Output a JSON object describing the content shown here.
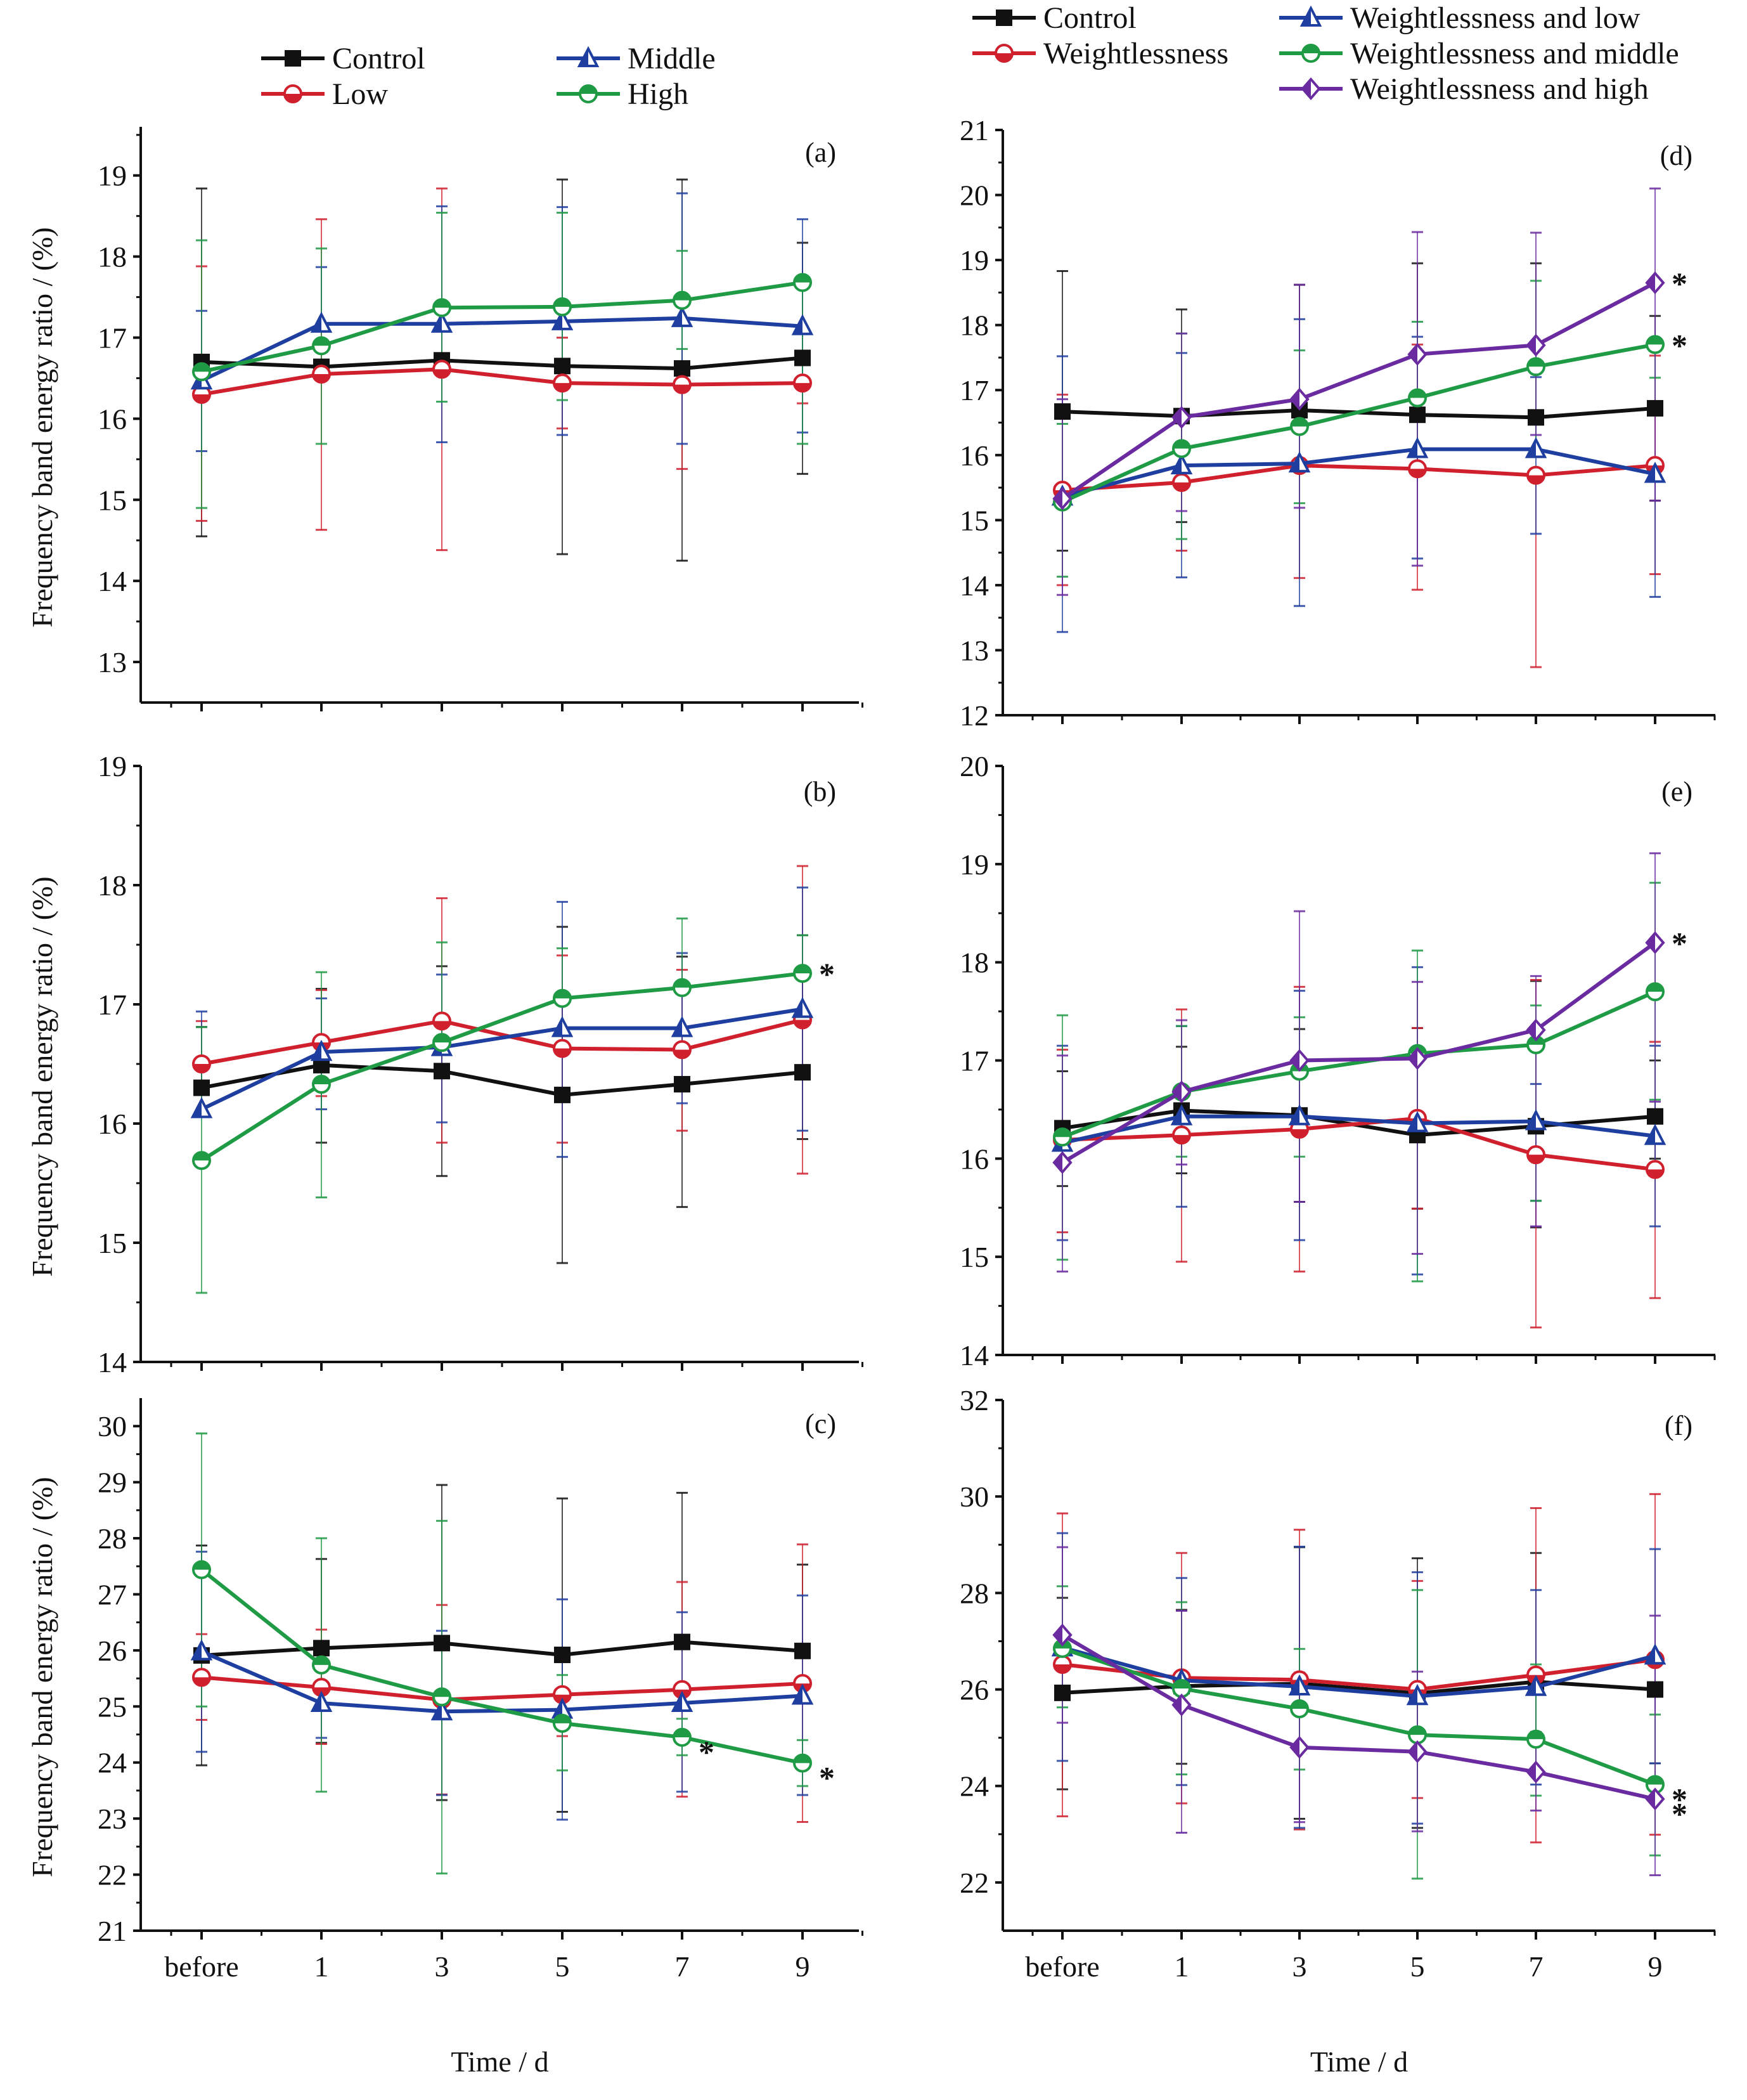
{
  "legends": {
    "left": [
      {
        "name": "Control",
        "color": "#111111",
        "marker": "square"
      },
      {
        "name": "Low",
        "color": "#d0202e",
        "marker": "circle"
      },
      {
        "name": "Middle",
        "color": "#1f3fa0",
        "marker": "triangle"
      },
      {
        "name": "High",
        "color": "#1f9a45",
        "marker": "circle-half"
      }
    ],
    "right": [
      {
        "name": "Control",
        "color": "#111111",
        "marker": "square"
      },
      {
        "name": "Weightlessness",
        "color": "#d0202e",
        "marker": "circle"
      },
      {
        "name": "Weightlessness and low",
        "color": "#1f3fa0",
        "marker": "triangle"
      },
      {
        "name": "Weightlessness and middle",
        "color": "#1f9a45",
        "marker": "circle-half"
      },
      {
        "name": "Weightlessness and high",
        "color": "#6a2aa0",
        "marker": "diamond"
      }
    ]
  },
  "chart_data": [
    {
      "type": "line",
      "panel": "(a)",
      "xlabel": "",
      "ylabel": "Frequency band energy ratio / (%)",
      "categories": [
        "before",
        "1",
        "3",
        "5",
        "7",
        "9"
      ],
      "ylim": [
        12.5,
        19.6
      ],
      "yticks": [
        13,
        14,
        15,
        16,
        17,
        18,
        19
      ],
      "series": [
        {
          "name": "Control",
          "values": [
            16.7,
            16.64,
            16.72,
            16.65,
            16.62,
            16.75
          ],
          "err_low": [
            14.55,
            null,
            null,
            14.33,
            14.25,
            15.32
          ],
          "err_high": [
            18.84,
            null,
            null,
            18.95,
            18.95,
            18.17
          ]
        },
        {
          "name": "Low",
          "values": [
            16.3,
            16.55,
            16.61,
            16.44,
            16.42,
            16.44
          ],
          "err_low": [
            14.74,
            14.63,
            14.38,
            15.88,
            15.38,
            16.19
          ],
          "err_high": [
            17.88,
            18.46,
            18.84,
            17.0,
            null,
            null
          ]
        },
        {
          "name": "Middle",
          "values": [
            16.47,
            17.17,
            17.17,
            17.2,
            17.24,
            17.14
          ],
          "err_low": [
            15.6,
            null,
            15.71,
            15.8,
            15.69,
            15.83
          ],
          "err_high": [
            17.33,
            17.87,
            18.62,
            18.61,
            18.78,
            18.46
          ]
        },
        {
          "name": "High",
          "values": [
            16.58,
            16.9,
            17.37,
            17.38,
            17.46,
            17.68
          ],
          "err_low": [
            14.9,
            15.69,
            16.21,
            16.23,
            16.86,
            15.69
          ],
          "err_high": [
            18.2,
            18.1,
            18.54,
            18.54,
            18.07,
            null
          ]
        }
      ],
      "significance": []
    },
    {
      "type": "line",
      "panel": "(b)",
      "xlabel": "",
      "ylabel": "Frequency band energy ratio / (%)",
      "categories": [
        "before",
        "1",
        "3",
        "5",
        "7",
        "9"
      ],
      "ylim": [
        14,
        19
      ],
      "yticks": [
        14,
        15,
        16,
        17,
        18,
        19
      ],
      "series": [
        {
          "name": "Control",
          "values": [
            16.3,
            16.49,
            16.44,
            16.24,
            16.33,
            16.43
          ],
          "err_low": [
            null,
            15.84,
            15.56,
            14.83,
            15.3,
            15.87
          ],
          "err_high": [
            16.81,
            17.13,
            17.32,
            17.65,
            17.4,
            17.58
          ]
        },
        {
          "name": "Low",
          "values": [
            16.5,
            16.68,
            16.86,
            16.63,
            16.62,
            16.87
          ],
          "err_low": [
            null,
            16.23,
            15.84,
            15.84,
            15.94,
            15.58
          ],
          "err_high": [
            16.86,
            17.12,
            17.89,
            17.41,
            17.29,
            18.16
          ]
        },
        {
          "name": "Middle",
          "values": [
            16.12,
            16.6,
            16.64,
            16.8,
            16.8,
            16.96
          ],
          "err_low": [
            null,
            16.12,
            16.01,
            15.72,
            16.17,
            15.94
          ],
          "err_high": [
            16.94,
            17.05,
            17.25,
            17.86,
            17.43,
            17.98
          ]
        },
        {
          "name": "High",
          "values": [
            15.69,
            16.33,
            16.68,
            17.05,
            17.14,
            17.26
          ],
          "err_low": [
            14.58,
            15.38,
            null,
            null,
            null,
            null
          ],
          "err_high": [
            16.81,
            17.27,
            17.52,
            17.47,
            17.72,
            17.58
          ]
        }
      ],
      "significance": [
        {
          "series": "High",
          "x": "9"
        }
      ]
    },
    {
      "type": "line",
      "panel": "(c)",
      "xlabel": "Time / d",
      "ylabel": "Frequency band energy ratio / (%)",
      "categories": [
        "before",
        "1",
        "3",
        "5",
        "7",
        "9"
      ],
      "ylim": [
        21,
        30.5
      ],
      "yticks": [
        21,
        22,
        23,
        24,
        25,
        26,
        27,
        28,
        29,
        30
      ],
      "series": [
        {
          "name": "Control",
          "values": [
            25.91,
            26.04,
            26.13,
            25.92,
            26.15,
            25.99
          ],
          "err_low": [
            23.95,
            24.35,
            23.33,
            23.12,
            null,
            null
          ],
          "err_high": [
            27.87,
            27.63,
            28.95,
            28.71,
            28.81,
            27.53
          ]
        },
        {
          "name": "Low",
          "values": [
            25.52,
            25.34,
            25.12,
            25.21,
            25.3,
            25.41
          ],
          "err_low": [
            24.76,
            24.33,
            23.43,
            24.47,
            23.39,
            22.94
          ],
          "err_high": [
            26.29,
            26.37,
            26.81,
            null,
            27.22,
            27.89
          ]
        },
        {
          "name": "Middle",
          "values": [
            25.98,
            25.06,
            24.91,
            24.94,
            25.06,
            25.19
          ],
          "err_low": [
            24.19,
            24.44,
            23.42,
            22.98,
            23.48,
            23.42
          ],
          "err_high": [
            27.76,
            null,
            26.35,
            26.91,
            26.68,
            26.98
          ]
        },
        {
          "name": "High",
          "values": [
            27.44,
            25.74,
            25.17,
            24.7,
            24.45,
            23.99
          ],
          "err_low": [
            25.0,
            23.48,
            22.02,
            23.86,
            24.13,
            23.58
          ],
          "err_high": [
            29.87,
            28.0,
            28.31,
            25.56,
            24.78,
            24.4
          ]
        }
      ],
      "significance": [
        {
          "series": "High",
          "x": "7"
        },
        {
          "series": "High",
          "x": "9"
        }
      ]
    },
    {
      "type": "line",
      "panel": "(d)",
      "xlabel": "",
      "ylabel": "",
      "categories": [
        "before",
        "1",
        "3",
        "5",
        "7",
        "9"
      ],
      "ylim": [
        12,
        21
      ],
      "yticks": [
        12,
        13,
        14,
        15,
        16,
        17,
        18,
        19,
        20,
        21
      ],
      "series": [
        {
          "name": "Control",
          "values": [
            16.67,
            16.6,
            16.69,
            16.62,
            16.58,
            16.72
          ],
          "err_low": [
            14.53,
            14.97,
            null,
            null,
            null,
            15.3
          ],
          "err_high": [
            18.83,
            18.24,
            18.62,
            18.95,
            18.95,
            18.14
          ]
        },
        {
          "name": "Weightlessness",
          "values": [
            15.46,
            15.58,
            15.84,
            15.79,
            15.69,
            15.84
          ],
          "err_low": [
            14.0,
            14.53,
            14.11,
            13.93,
            12.74,
            14.17
          ],
          "err_high": [
            16.93,
            null,
            null,
            17.7,
            null,
            17.53
          ]
        },
        {
          "name": "Weightlessness and low",
          "values": [
            15.36,
            15.84,
            15.87,
            16.09,
            16.09,
            15.71
          ],
          "err_low": [
            13.28,
            14.12,
            13.68,
            14.41,
            14.79,
            13.82
          ],
          "err_high": [
            17.52,
            17.57,
            18.09,
            17.82,
            17.2,
            null
          ]
        },
        {
          "name": "Weightlessness and middle",
          "values": [
            15.28,
            16.1,
            16.44,
            16.88,
            17.36,
            17.7
          ],
          "err_low": [
            14.13,
            14.71,
            15.26,
            15.72,
            16.0,
            16.67
          ],
          "err_high": [
            16.48,
            17.87,
            17.61,
            18.05,
            18.68,
            17.19
          ]
        },
        {
          "name": "Weightlessness and high",
          "values": [
            15.33,
            16.58,
            16.86,
            17.55,
            17.69,
            18.65
          ],
          "err_low": [
            13.85,
            15.14,
            15.19,
            14.3,
            16.31,
            15.3
          ],
          "err_high": [
            16.86,
            17.87,
            18.62,
            19.43,
            19.42,
            20.1
          ]
        }
      ],
      "significance": [
        {
          "series": "Weightlessness and high",
          "x": "9"
        },
        {
          "series": "Weightlessness and middle",
          "x": "9"
        }
      ]
    },
    {
      "type": "line",
      "panel": "(e)",
      "xlabel": "",
      "ylabel": "",
      "categories": [
        "before",
        "1",
        "3",
        "5",
        "7",
        "9"
      ],
      "ylim": [
        14,
        20
      ],
      "yticks": [
        14,
        15,
        16,
        17,
        18,
        19,
        20
      ],
      "series": [
        {
          "name": "Control",
          "values": [
            16.31,
            16.49,
            16.44,
            16.24,
            16.33,
            16.43
          ],
          "err_low": [
            15.72,
            15.85,
            15.56,
            15.49,
            15.3,
            16.0
          ],
          "err_high": [
            16.89,
            17.14,
            17.32,
            17.33,
            17.81,
            17.0
          ]
        },
        {
          "name": "Weightlessness",
          "values": [
            16.19,
            16.24,
            16.3,
            16.41,
            16.04,
            15.89
          ],
          "err_low": [
            15.25,
            14.95,
            14.85,
            15.49,
            14.28,
            14.58
          ],
          "err_high": [
            17.11,
            17.52,
            17.75,
            17.33,
            17.82,
            17.19
          ]
        },
        {
          "name": "Weightlessness and low",
          "values": [
            16.16,
            16.43,
            16.43,
            16.36,
            16.38,
            16.23
          ],
          "err_low": [
            15.17,
            15.51,
            15.17,
            14.82,
            15.57,
            15.31
          ],
          "err_high": [
            17.15,
            17.35,
            17.71,
            17.95,
            16.76,
            17.15
          ]
        },
        {
          "name": "Weightlessness and middle",
          "values": [
            16.22,
            16.68,
            16.89,
            17.07,
            17.16,
            17.7
          ],
          "err_low": [
            14.97,
            16.02,
            16.02,
            14.75,
            15.57,
            16.6
          ],
          "err_high": [
            17.46,
            17.35,
            17.44,
            18.12,
            17.56,
            18.81
          ]
        },
        {
          "name": "Weightlessness and high",
          "values": [
            15.96,
            16.68,
            17.0,
            17.02,
            17.31,
            18.2
          ],
          "err_low": [
            14.85,
            15.94,
            15.56,
            15.03,
            15.31,
            16.58
          ],
          "err_high": [
            17.05,
            17.41,
            18.52,
            17.8,
            17.86,
            19.11
          ]
        }
      ],
      "significance": [
        {
          "series": "Weightlessness and high",
          "x": "9"
        }
      ]
    },
    {
      "type": "line",
      "panel": "(f)",
      "xlabel": "Time / d",
      "ylabel": "",
      "categories": [
        "before",
        "1",
        "3",
        "5",
        "7",
        "9"
      ],
      "ylim": [
        21,
        32
      ],
      "yticks": [
        22,
        24,
        26,
        28,
        30,
        32
      ],
      "series": [
        {
          "name": "Control",
          "values": [
            25.93,
            26.07,
            26.12,
            25.92,
            26.16,
            26.0
          ],
          "err_low": [
            23.93,
            24.46,
            23.32,
            23.13,
            null,
            24.47
          ],
          "err_high": [
            27.9,
            27.65,
            28.95,
            28.72,
            28.83,
            null
          ]
        },
        {
          "name": "Weightlessness",
          "values": [
            26.52,
            26.24,
            26.2,
            26.0,
            26.3,
            26.62
          ],
          "err_low": [
            23.37,
            23.64,
            23.1,
            23.75,
            22.83,
            22.99
          ],
          "err_high": [
            29.65,
            28.83,
            29.31,
            28.25,
            29.76,
            30.05
          ]
        },
        {
          "name": "Weightlessness and low",
          "values": [
            26.87,
            26.19,
            26.06,
            25.86,
            26.05,
            26.7
          ],
          "err_low": [
            24.52,
            24.02,
            23.13,
            23.22,
            24.03,
            24.47
          ],
          "err_high": [
            29.24,
            28.31,
            28.96,
            28.43,
            28.06,
            28.91
          ]
        },
        {
          "name": "Weightlessness and middle",
          "values": [
            26.85,
            26.02,
            25.6,
            25.06,
            24.97,
            24.03
          ],
          "err_low": [
            25.63,
            24.24,
            24.34,
            22.08,
            23.8,
            22.56
          ],
          "err_high": [
            28.14,
            27.81,
            26.84,
            28.06,
            26.52,
            25.48
          ]
        },
        {
          "name": "Weightlessness and high",
          "values": [
            27.13,
            25.68,
            24.8,
            24.71,
            24.29,
            23.73
          ],
          "err_low": [
            25.31,
            23.03,
            23.25,
            23.06,
            23.49,
            22.15
          ],
          "err_high": [
            28.95,
            27.63,
            26.35,
            26.37,
            25.12,
            27.53
          ]
        }
      ],
      "significance": [
        {
          "series": "Weightlessness and middle",
          "x": "9"
        },
        {
          "series": "Weightlessness and high",
          "x": "9"
        }
      ]
    }
  ]
}
